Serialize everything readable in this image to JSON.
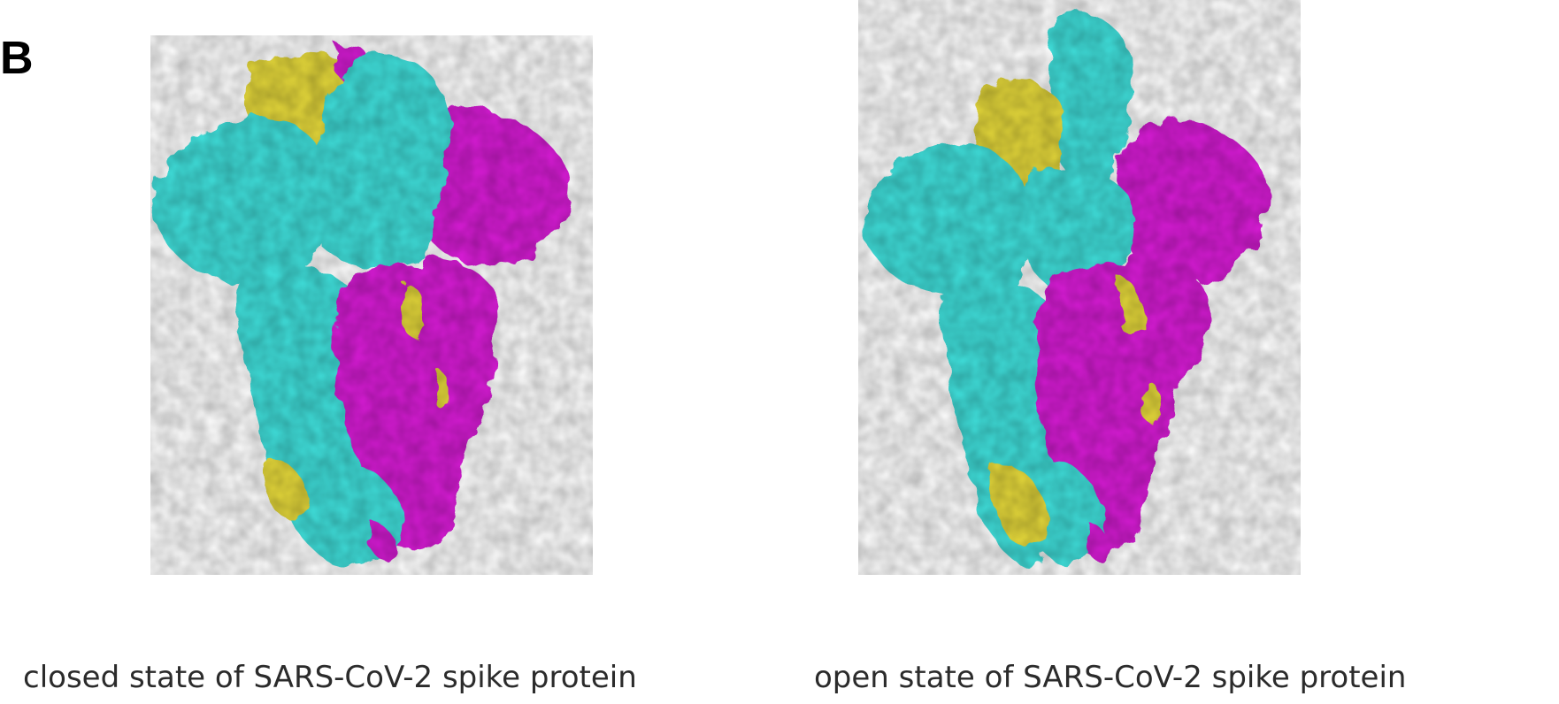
{
  "figure": {
    "panel_label": "B",
    "left_structure": {
      "caption": "closed state of SARS-CoV-2 spike protein"
    },
    "right_structure": {
      "caption": "open state of SARS-CoV-2 spike protein"
    }
  },
  "colors": {
    "chain_a": "#3fe0dc",
    "chain_b": "#d81fd6",
    "chain_c": "#e6d93a",
    "background": "#ffffff"
  }
}
